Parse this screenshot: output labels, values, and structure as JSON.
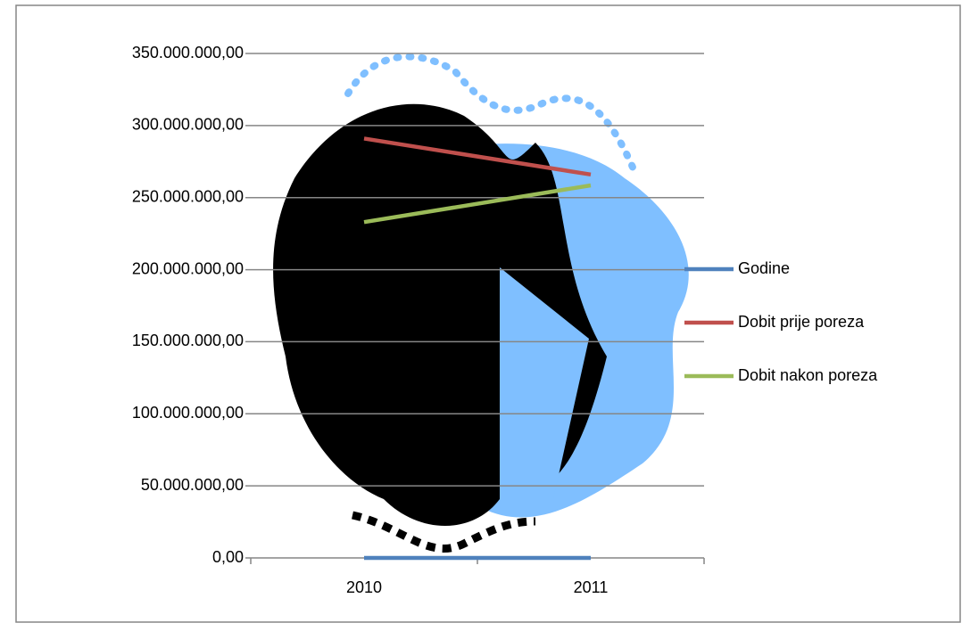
{
  "chart_data": {
    "type": "line",
    "categories": [
      "2010",
      "2011"
    ],
    "series": [
      {
        "name": "Godine",
        "color": "#4f81bd",
        "values": [
          2010,
          2011
        ]
      },
      {
        "name": "Dobit prije poreza",
        "color": "#c0504d",
        "values": [
          291000000,
          266000000
        ]
      },
      {
        "name": "Dobit nakon poreza",
        "color": "#9bbb59",
        "values": [
          233000000,
          258500000
        ]
      }
    ],
    "ylim": [
      0,
      350000000
    ],
    "yticks": [
      {
        "value": 0,
        "label": "0,00"
      },
      {
        "value": 50000000,
        "label": "50.000.000,00"
      },
      {
        "value": 100000000,
        "label": "100.000.000,00"
      },
      {
        "value": 150000000,
        "label": "150.000.000,00"
      },
      {
        "value": 200000000,
        "label": "200.000.000,00"
      },
      {
        "value": 250000000,
        "label": "250.000.000,00"
      },
      {
        "value": 300000000,
        "label": "300.000.000,00"
      },
      {
        "value": 350000000,
        "label": "350.000.000,00"
      }
    ],
    "grid": true,
    "legend": "right"
  }
}
